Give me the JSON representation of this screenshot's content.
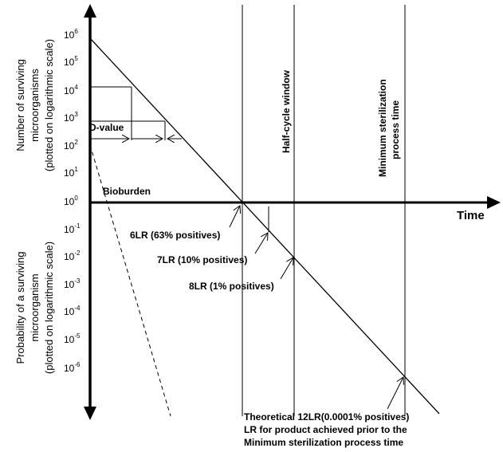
{
  "y_axis": {
    "upper_title_line1": "Number of surviving",
    "upper_title_line2": "microorganisms",
    "upper_title_line3": "(plotted on logarithmic scale)",
    "lower_title_line1": "Probability of a surviving",
    "lower_title_line2": "microorganism",
    "lower_title_line3": "(plotted on logarithmic  scale)",
    "tick_base": "10",
    "tick_exponents": [
      "6",
      "5",
      "4",
      "3",
      "2",
      "1",
      "0",
      "-1",
      "-2",
      "-3",
      "-4",
      "-5",
      "-6"
    ]
  },
  "x_axis": {
    "label": "Time"
  },
  "labels": {
    "d_value": "D-value",
    "bioburden": "Bioburden",
    "lr6": "6LR (63% positives)",
    "lr7": "7LR (10% positives)",
    "lr8": "8LR (1% positives)",
    "half_cycle": "Half-cycle window",
    "min_sterilization_line1": "Minimum sterilization",
    "min_sterilization_line2": "process time",
    "footnote_line1": "Theoretical 12LR(0.0001% positives)",
    "footnote_line2": "LR for product achieved prior to the",
    "footnote_line3": "Minimum sterilization  process time"
  },
  "colors": {
    "ink": "#000000",
    "background": "#ffffff"
  }
}
